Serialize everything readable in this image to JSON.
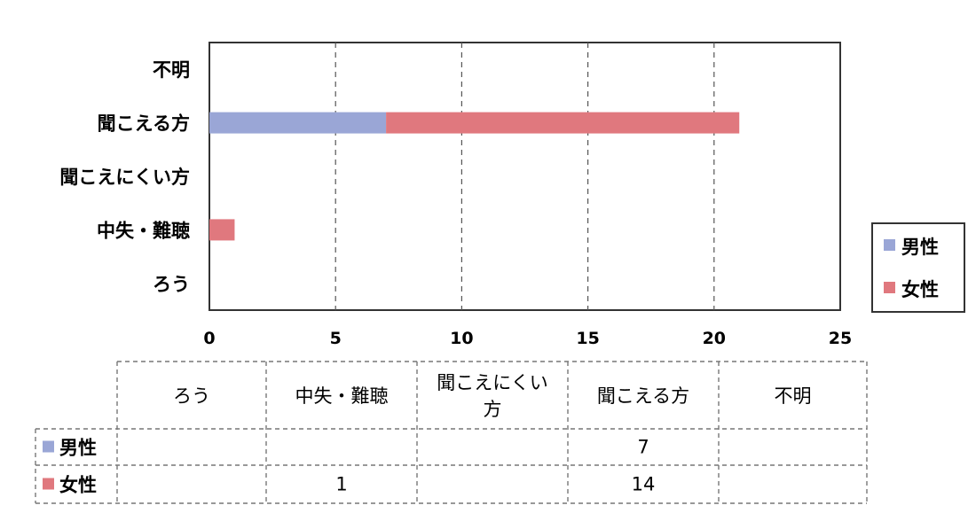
{
  "chart_data": {
    "type": "bar",
    "orientation": "horizontal",
    "stacked": true,
    "categories": [
      "ろう",
      "中失・難聴",
      "聞こえにくい方",
      "聞こえる方",
      "不明"
    ],
    "series": [
      {
        "name": "男性",
        "values": [
          0,
          0,
          0,
          7,
          0
        ],
        "color": "#9aa6d6"
      },
      {
        "name": "女性",
        "values": [
          0,
          1,
          0,
          14,
          0
        ],
        "color": "#e0787e"
      }
    ],
    "xlim": [
      0,
      25
    ],
    "xticks": [
      0,
      5,
      10,
      15,
      20,
      25
    ],
    "grid": "vertical dashed",
    "legend": "right",
    "data_table": {
      "headers": [
        "ろう",
        "中失・難聴",
        "聞こえにくい方",
        "聞こえる方",
        "不明"
      ],
      "rows": [
        {
          "series": "男性",
          "cells": [
            "",
            "",
            "",
            "7",
            ""
          ]
        },
        {
          "series": "女性",
          "cells": [
            "",
            "1",
            "",
            "14",
            ""
          ]
        }
      ]
    }
  }
}
